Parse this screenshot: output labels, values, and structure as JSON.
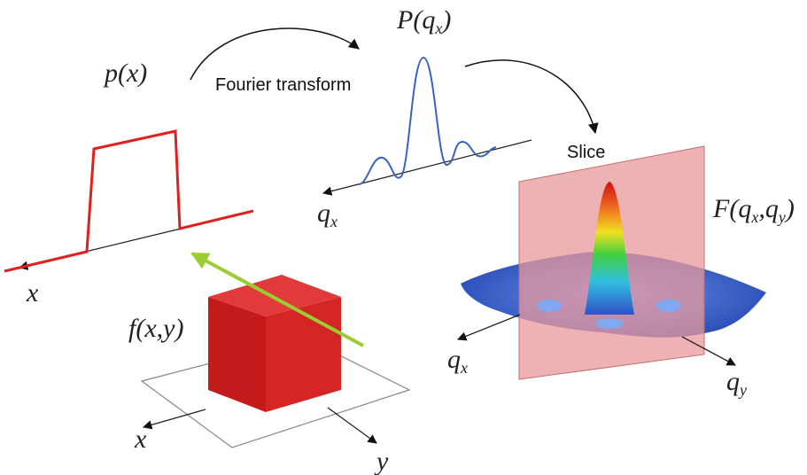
{
  "labels": {
    "p_x": "p(x)",
    "fourier": "Fourier transform",
    "P_qx": [
      "P(q",
      "x",
      ")"
    ],
    "slice": "Slice",
    "F_qxqy": [
      "F(q",
      "x",
      ",q",
      "y",
      ")"
    ],
    "sinc_axis": [
      "q",
      "x"
    ],
    "step_axis": "x",
    "f_xy": "f(x,y)",
    "cube_x": "x",
    "cube_y": "y",
    "surface_qx": [
      "q",
      "x"
    ],
    "surface_qy": [
      "q",
      "y"
    ]
  }
}
